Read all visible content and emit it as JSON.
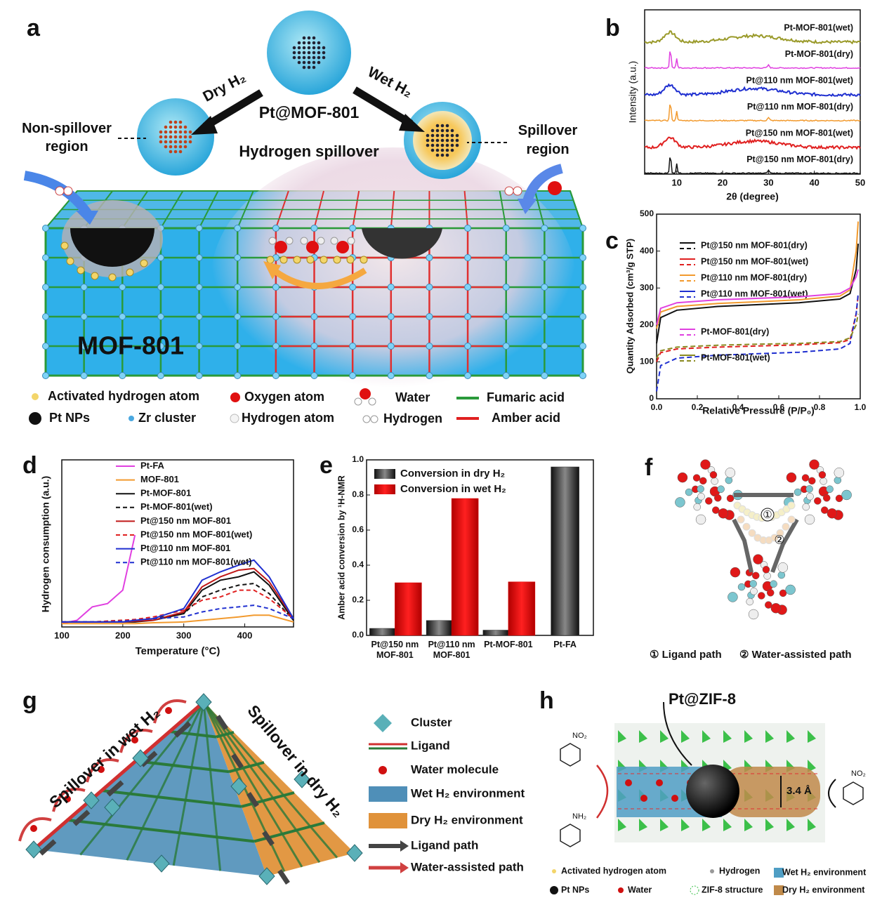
{
  "panels": {
    "a": {
      "label": "a",
      "top_label": "Pt@MOF-801",
      "subtitle": "Hydrogen spillover",
      "dry": "Dry H₂",
      "wet": "Wet H₂",
      "non_spillover": "Non-spillover region",
      "spillover": "Spillover region",
      "framework": "MOF-801",
      "legend": [
        "Activated hydrogen atom",
        "Oxygen atom",
        "Water",
        "Fumaric acid",
        "Pt NPs",
        "Zr cluster",
        "Hydrogen atom",
        "Hydrogen",
        "Amber acid"
      ]
    },
    "b": {
      "label": "b",
      "chart": {
        "type": "line",
        "xlabel": "2θ (degree)",
        "ylabel": "Intensity (a.u.)",
        "xlim": [
          3,
          50
        ],
        "xticks": [
          10,
          20,
          30,
          40,
          50
        ],
        "series": [
          {
            "name": "Pt-MOF-801(wet)",
            "color": "#9a9a2a"
          },
          {
            "name": "Pt-MOF-801(dry)",
            "color": "#e040e0"
          },
          {
            "name": "Pt@110 nm MOF-801(wet)",
            "color": "#1f2fd0"
          },
          {
            "name": "Pt@110 nm MOF-801(dry)",
            "color": "#f29a2e"
          },
          {
            "name": "Pt@150 nm MOF-801(wet)",
            "color": "#e02020"
          },
          {
            "name": "Pt@150 nm MOF-801(dry)",
            "color": "#111111"
          }
        ]
      }
    },
    "c": {
      "label": "c",
      "chart": {
        "type": "line",
        "xlabel": "Relative Pressure (P/P₀)",
        "ylabel": "Quantity Adsorbed (cm³/g STP)",
        "xlim": [
          0,
          1.0
        ],
        "xticks": [
          {
            "value": 0,
            "label": "0.0"
          },
          0.2,
          0.4,
          0.6,
          0.8,
          {
            "value": 1.0,
            "label": "1.0"
          }
        ],
        "ylim": [
          0,
          500
        ],
        "yticks": [
          0,
          100,
          200,
          300,
          400,
          500
        ],
        "x": [
          0,
          0.02,
          0.1,
          0.3,
          0.5,
          0.7,
          0.9,
          0.95,
          0.98,
          0.99
        ],
        "series": [
          {
            "name": "Pt@150 nm MOF-801(dry)",
            "color": "#111111",
            "values": [
              150,
              220,
              240,
              250,
              255,
              260,
              270,
              285,
              350,
              420
            ]
          },
          {
            "name": "Pt@150 nm MOF-801(wet)",
            "color": "#e02020",
            "values": [
              100,
              125,
              135,
              140,
              143,
              146,
              152,
              160,
              230,
              280
            ]
          },
          {
            "name": "Pt@110 nm MOF-801(dry)",
            "color": "#f29a2e",
            "values": [
              190,
              235,
              250,
              258,
              263,
              268,
              278,
              295,
              400,
              480
            ]
          },
          {
            "name": "Pt@110 nm MOF-801(wet)",
            "color": "#1f2fd0",
            "values": [
              20,
              90,
              110,
              118,
              122,
              126,
              135,
              150,
              230,
              285
            ]
          },
          {
            "name": "Pt-MOF-801(dry)",
            "color": "#e040e0",
            "values": [
              200,
              245,
              260,
              268,
              272,
              276,
              285,
              300,
              330,
              350
            ]
          },
          {
            "name": "Pt-MOF-801(wet)",
            "color": "#8a8a20",
            "values": [
              110,
              130,
              140,
              145,
              148,
              150,
              155,
              165,
              200,
              230
            ]
          }
        ]
      }
    },
    "d": {
      "label": "d",
      "chart": {
        "type": "line",
        "xlabel": "Temperature (°C)",
        "ylabel": "Hydrogen consumption (a.u.)",
        "xlim": [
          100,
          480
        ],
        "xticks": [
          100,
          200,
          300,
          400
        ],
        "ylim": [
          0,
          100
        ],
        "x": [
          100,
          125,
          150,
          175,
          200,
          220,
          250,
          300,
          330,
          360,
          390,
          415,
          440,
          480
        ],
        "series": [
          {
            "name": "Pt-FA",
            "color": "#e040e0",
            "dash": false,
            "values": [
              2,
              4,
              12,
              14,
              22,
              55,
              null,
              null,
              null,
              null,
              null,
              null,
              null,
              null
            ]
          },
          {
            "name": "MOF-801",
            "color": "#f29a2e",
            "dash": false,
            "values": [
              2,
              2,
              2,
              2,
              2,
              2,
              2.5,
              3,
              4,
              5,
              6,
              7,
              7,
              3
            ]
          },
          {
            "name": "Pt-MOF-801",
            "color": "#111111",
            "dash": false,
            "values": [
              3,
              3,
              3,
              3,
              3,
              3,
              4,
              8,
              22,
              28,
              30,
              33,
              25,
              4
            ]
          },
          {
            "name": "Pt-MOF-801(wet)",
            "color": "#111111",
            "dash": true,
            "values": [
              3,
              3,
              3,
              3.5,
              4,
              4,
              5,
              8,
              18,
              22,
              25,
              26,
              20,
              4
            ]
          },
          {
            "name": "Pt@150 nm MOF-801",
            "color": "#c01818",
            "dash": false,
            "values": [
              3,
              3,
              3,
              3,
              3,
              3.5,
              4,
              9,
              24,
              30,
              34,
              35,
              27,
              5
            ]
          },
          {
            "name": "Pt@150 nm MOF-801(wet)",
            "color": "#e02020",
            "dash": true,
            "values": [
              3,
              3,
              3,
              3.5,
              4,
              4.5,
              6,
              10,
              16,
              18,
              22,
              22,
              17,
              5
            ]
          },
          {
            "name": "Pt@110 nm MOF-801",
            "color": "#1f2fd0",
            "dash": false,
            "values": [
              3,
              3,
              3,
              3,
              3,
              4,
              5,
              11,
              28,
              33,
              37,
              40,
              30,
              5
            ]
          },
          {
            "name": "Pt@110 nm MOF-801(wet)",
            "color": "#1f2fd0",
            "dash": true,
            "values": [
              3,
              3,
              3,
              3,
              3.5,
              4,
              5,
              6,
              9,
              11,
              12,
              13,
              11,
              5
            ]
          }
        ]
      }
    },
    "e": {
      "label": "e",
      "chart": {
        "type": "bar",
        "ylabel": "Amber acid conversion by ¹H-NMR",
        "categories": [
          "Pt@150 nm MOF-801",
          "Pt@110 nm MOF-801",
          "Pt-MOF-801",
          "Pt-FA"
        ],
        "ylim": [
          0,
          1.0
        ],
        "yticks": [
          {
            "value": 0,
            "label": "0.0"
          },
          0.2,
          0.4,
          0.6,
          0.8,
          {
            "value": 1.0,
            "label": "1.0"
          }
        ],
        "series": [
          {
            "name": "Conversion in dry H₂",
            "color": "#333333",
            "values": [
              0.04,
              0.085,
              0.03,
              0.96
            ]
          },
          {
            "name": "Conversion in wet H₂",
            "color": "#e00000",
            "values": [
              0.3,
              0.78,
              0.305,
              null
            ]
          }
        ]
      }
    },
    "f": {
      "label": "f",
      "path1": "①",
      "path2": "②",
      "legend1": "① Ligand path",
      "legend2": "② Water-assisted path"
    },
    "g": {
      "label": "g",
      "wet": "Spillover in wet H₂",
      "dry": "Spillover in dry H₂",
      "legend": [
        "Cluster",
        "Ligand",
        "Water molecule",
        "Wet H₂ environment",
        "Dry H₂ environment",
        "Ligand path",
        "Water-assisted path"
      ]
    },
    "h": {
      "label": "h",
      "title": "Pt@ZIF-8",
      "gap": "3.4 Å",
      "no2": "NO₂",
      "nh2": "NH₂",
      "legend": [
        "Activated hydrogen atom",
        "Hydrogen",
        "Wet H₂ environment",
        "Pt NPs",
        "Water",
        "ZIF-8 structure",
        "Dry H₂ environment"
      ]
    }
  }
}
